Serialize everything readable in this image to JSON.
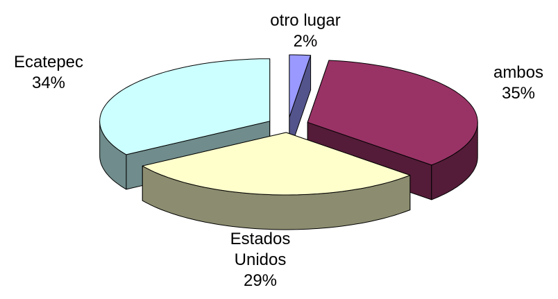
{
  "chart_data": {
    "type": "pie3d",
    "categories": [
      "otro lugar",
      "ambos",
      "Estados Unidos",
      "Ecatepec"
    ],
    "values": [
      2,
      35,
      29,
      34
    ],
    "value_labels": [
      "2%",
      "35%",
      "29%",
      "34%"
    ],
    "colors": [
      "#9999ff",
      "#993366",
      "#ffffcc",
      "#ccffff"
    ]
  }
}
